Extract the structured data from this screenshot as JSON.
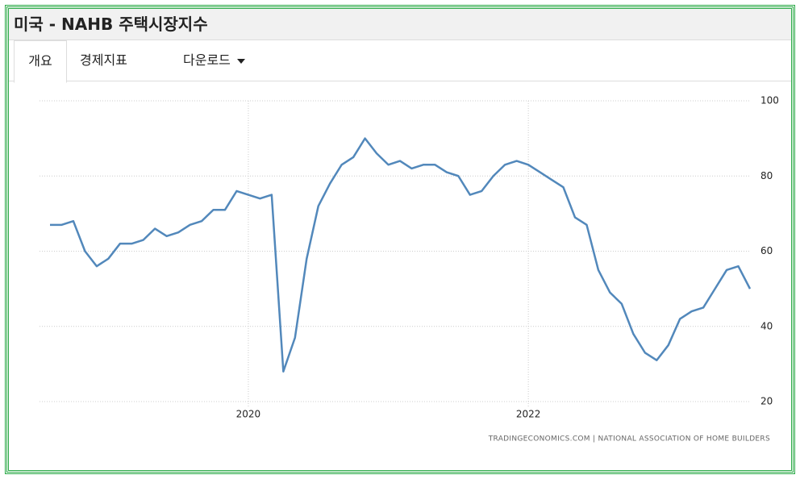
{
  "header": {
    "title": "미국 - NAHB 주택시장지수"
  },
  "tabs": [
    "개요",
    "경제지표",
    "다운로드"
  ],
  "chart_data": {
    "type": "line",
    "categories": [
      null,
      null,
      null,
      null,
      null,
      null,
      null,
      null,
      null,
      null,
      null,
      null,
      null,
      null,
      null,
      null,
      null,
      "2020",
      null,
      null,
      null,
      null,
      null,
      null,
      null,
      null,
      null,
      null,
      null,
      null,
      null,
      null,
      null,
      null,
      null,
      null,
      null,
      null,
      null,
      null,
      null,
      "2022",
      null,
      null,
      null,
      null,
      null,
      null,
      null,
      null,
      null,
      null,
      null,
      null,
      null,
      null,
      null,
      null,
      null,
      null,
      null
    ],
    "series": [
      {
        "name": "NAHB",
        "color": "#5288bb",
        "values": [
          67,
          67,
          68,
          60,
          56,
          58,
          62,
          62,
          63,
          66,
          64,
          65,
          67,
          68,
          71,
          71,
          76,
          75,
          74,
          75,
          28,
          37,
          58,
          72,
          78,
          83,
          85,
          90,
          86,
          83,
          84,
          82,
          83,
          83,
          81,
          80,
          75,
          76,
          80,
          83,
          84,
          83,
          81,
          79,
          77,
          69,
          67,
          55,
          49,
          46,
          38,
          33,
          31,
          35,
          42,
          44,
          45,
          50,
          55,
          56,
          50
        ]
      }
    ],
    "ylim": [
      20,
      100
    ],
    "yticks": [
      20,
      40,
      60,
      80,
      100
    ],
    "grid": true,
    "source": "TRADINGECONOMICS.COM | NATIONAL ASSOCIATION OF HOME BUILDERS"
  }
}
